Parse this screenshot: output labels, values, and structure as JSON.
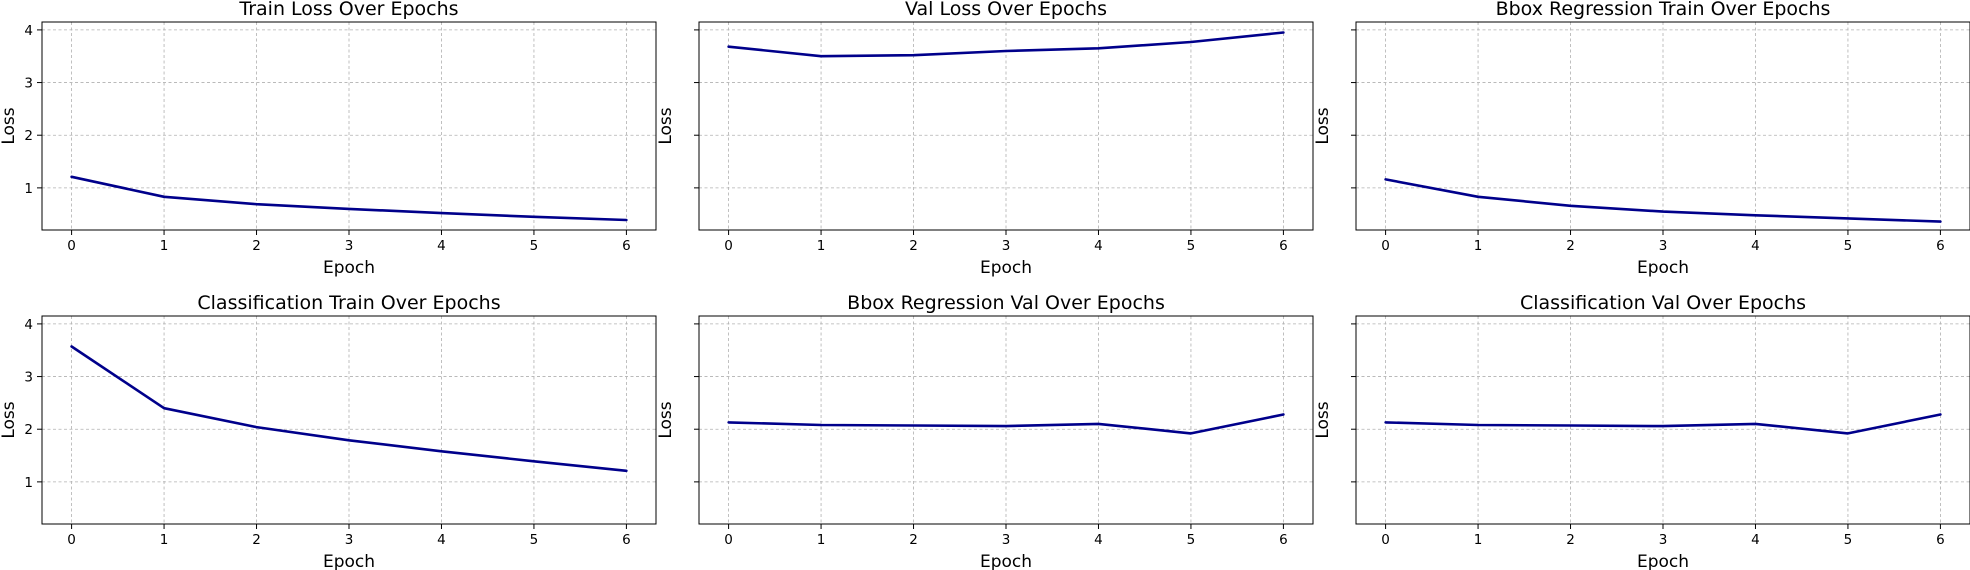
{
  "line_color": "#00008b",
  "chart_data": [
    {
      "type": "line",
      "title": "Train Loss Over Epochs",
      "xlabel": "Epoch",
      "ylabel": "Loss",
      "x": [
        0,
        1,
        2,
        3,
        4,
        5,
        6
      ],
      "series": [
        {
          "values": [
            1.21,
            0.83,
            0.69,
            0.6,
            0.52,
            0.45,
            0.39
          ]
        }
      ],
      "xlim": [
        -0.32,
        6.32
      ],
      "ylim": [
        0.2,
        4.15
      ],
      "xticks": [
        0,
        1,
        2,
        3,
        4,
        5,
        6
      ],
      "yticks": [
        1,
        2,
        3,
        4
      ],
      "ytick_labels_shown": true,
      "grid": true
    },
    {
      "type": "line",
      "title": "Val Loss Over Epochs",
      "xlabel": "Epoch",
      "ylabel": "Loss",
      "x": [
        0,
        1,
        2,
        3,
        4,
        5,
        6
      ],
      "series": [
        {
          "values": [
            3.68,
            3.5,
            3.52,
            3.6,
            3.65,
            3.77,
            3.95
          ]
        }
      ],
      "xlim": [
        -0.32,
        6.32
      ],
      "ylim": [
        0.2,
        4.15
      ],
      "xticks": [
        0,
        1,
        2,
        3,
        4,
        5,
        6
      ],
      "yticks": [
        1,
        2,
        3,
        4
      ],
      "ytick_labels_shown": false,
      "grid": true
    },
    {
      "type": "line",
      "title": "Bbox Regression Train Over Epochs",
      "xlabel": "Epoch",
      "ylabel": "Loss",
      "x": [
        0,
        1,
        2,
        3,
        4,
        5,
        6
      ],
      "series": [
        {
          "values": [
            1.16,
            0.83,
            0.66,
            0.55,
            0.48,
            0.42,
            0.36
          ]
        }
      ],
      "xlim": [
        -0.32,
        6.32
      ],
      "ylim": [
        0.2,
        4.15
      ],
      "xticks": [
        0,
        1,
        2,
        3,
        4,
        5,
        6
      ],
      "yticks": [
        1,
        2,
        3,
        4
      ],
      "ytick_labels_shown": false,
      "grid": true
    },
    {
      "type": "line",
      "title": "Classification Train Over Epochs",
      "xlabel": "Epoch",
      "ylabel": "Loss",
      "x": [
        0,
        1,
        2,
        3,
        4,
        5,
        6
      ],
      "series": [
        {
          "values": [
            3.57,
            2.4,
            2.04,
            1.79,
            1.58,
            1.39,
            1.21
          ]
        }
      ],
      "xlim": [
        -0.32,
        6.32
      ],
      "ylim": [
        0.2,
        4.15
      ],
      "xticks": [
        0,
        1,
        2,
        3,
        4,
        5,
        6
      ],
      "yticks": [
        1,
        2,
        3,
        4
      ],
      "ytick_labels_shown": true,
      "grid": true
    },
    {
      "type": "line",
      "title": "Bbox Regression Val Over Epochs",
      "xlabel": "Epoch",
      "ylabel": "Loss",
      "x": [
        0,
        1,
        2,
        3,
        4,
        5,
        6
      ],
      "series": [
        {
          "values": [
            2.13,
            2.08,
            2.07,
            2.06,
            2.1,
            1.92,
            2.28
          ]
        }
      ],
      "xlim": [
        -0.32,
        6.32
      ],
      "ylim": [
        0.2,
        4.15
      ],
      "xticks": [
        0,
        1,
        2,
        3,
        4,
        5,
        6
      ],
      "yticks": [
        1,
        2,
        3,
        4
      ],
      "ytick_labels_shown": false,
      "grid": true
    },
    {
      "type": "line",
      "title": "Classification Val Over Epochs",
      "xlabel": "Epoch",
      "ylabel": "Loss",
      "x": [
        0,
        1,
        2,
        3,
        4,
        5,
        6
      ],
      "series": [
        {
          "values": [
            2.13,
            2.08,
            2.07,
            2.06,
            2.1,
            1.92,
            2.28
          ]
        }
      ],
      "xlim": [
        -0.32,
        6.32
      ],
      "ylim": [
        0.2,
        4.15
      ],
      "xticks": [
        0,
        1,
        2,
        3,
        4,
        5,
        6
      ],
      "yticks": [
        1,
        2,
        3,
        4
      ],
      "ytick_labels_shown": false,
      "grid": true
    }
  ]
}
